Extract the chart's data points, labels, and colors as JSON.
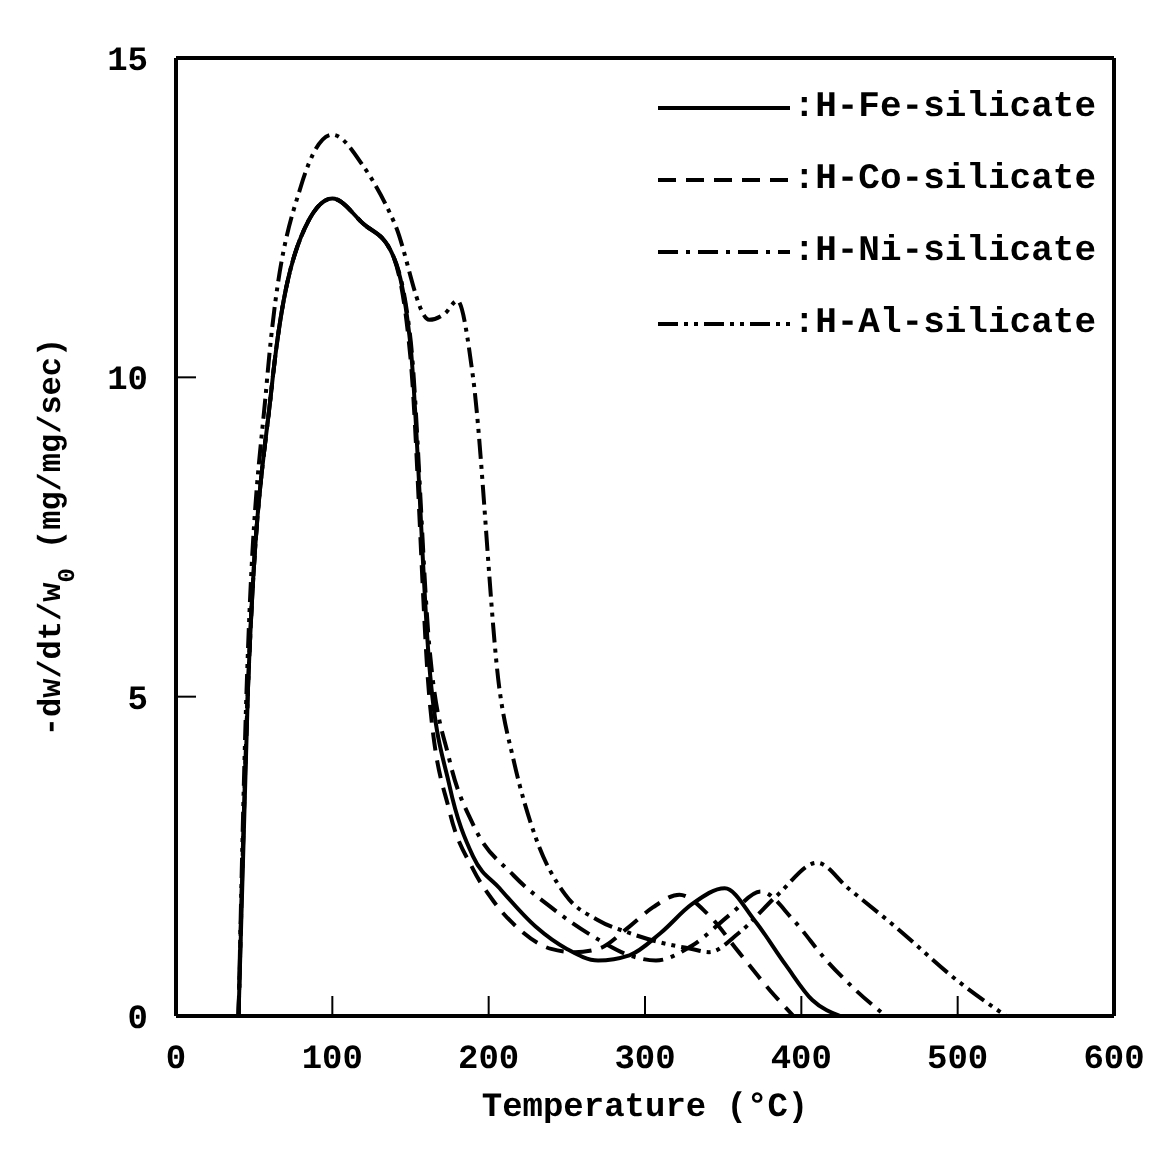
{
  "chart_data": {
    "type": "line",
    "xlabel": "Temperature (°C)",
    "ylabel": "-dw/dt/w$_{0}$ (mg/mg/sec)",
    "xlim": [
      0,
      600
    ],
    "ylim": [
      0,
      15
    ],
    "xticks": [
      0,
      100,
      200,
      300,
      400,
      500,
      600
    ],
    "yticks": [
      0,
      5,
      10,
      15
    ],
    "legend": "top right",
    "marker": "none",
    "series": [
      {
        "name": ":H-Fe-silicate",
        "color": "#000000",
        "line_style": "solid",
        "x": [
          40,
          46,
          61,
          80,
          100,
          120,
          137,
          150,
          162,
          175,
          190,
          207,
          230,
          250,
          270,
          290,
          310,
          330,
          351,
          370,
          390,
          407,
          425
        ],
        "values": [
          0,
          5.1,
          9.8,
          12.2,
          12.8,
          12.4,
          12.0,
          10.5,
          5.5,
          3.6,
          2.5,
          2.0,
          1.4,
          1.05,
          0.87,
          0.95,
          1.3,
          1.75,
          2.0,
          1.5,
          0.8,
          0.25,
          0
        ]
      },
      {
        "name": ":H-Co-silicate",
        "color": "#000000",
        "line_style": "dashed",
        "x": [
          40,
          46,
          61,
          80,
          100,
          120,
          137,
          150,
          162,
          175,
          190,
          203,
          220,
          240,
          255,
          270,
          290,
          305,
          322,
          340,
          360,
          380,
          395
        ],
        "values": [
          0,
          5.1,
          9.8,
          12.2,
          12.8,
          12.4,
          12.0,
          10.3,
          5.0,
          3.2,
          2.3,
          1.8,
          1.35,
          1.05,
          1.0,
          1.05,
          1.4,
          1.7,
          1.9,
          1.6,
          1.0,
          0.4,
          0
        ]
      },
      {
        "name": ":H-Ni-silicate",
        "color": "#000000",
        "line_style": "dashdot",
        "x": [
          40,
          46,
          61,
          80,
          100,
          120,
          137,
          150,
          162,
          175,
          190,
          216,
          240,
          270,
          290,
          307,
          330,
          355,
          374,
          395,
          415,
          435,
          454
        ],
        "values": [
          0,
          5.1,
          9.8,
          12.2,
          12.8,
          12.4,
          12.0,
          10.6,
          5.8,
          4.0,
          3.0,
          2.2,
          1.7,
          1.2,
          0.95,
          0.87,
          1.1,
          1.6,
          1.95,
          1.5,
          0.9,
          0.4,
          0
        ]
      },
      {
        "name": ":H-Al-silicate",
        "color": "#000000",
        "line_style": "dashdotdot",
        "x": [
          40,
          45,
          58,
          80,
          100,
          120,
          140,
          162,
          172,
          180,
          190,
          207,
          216,
          230,
          249,
          270,
          290,
          310,
          330,
          341,
          360,
          385,
          410,
          430,
          460,
          500,
          531
        ],
        "values": [
          0,
          5.0,
          9.9,
          13.0,
          13.8,
          13.3,
          12.4,
          10.9,
          11.0,
          11.2,
          10.0,
          5.1,
          4.0,
          2.8,
          1.9,
          1.5,
          1.3,
          1.15,
          1.05,
          1.0,
          1.3,
          1.9,
          2.4,
          2.0,
          1.4,
          0.55,
          0
        ]
      }
    ]
  }
}
